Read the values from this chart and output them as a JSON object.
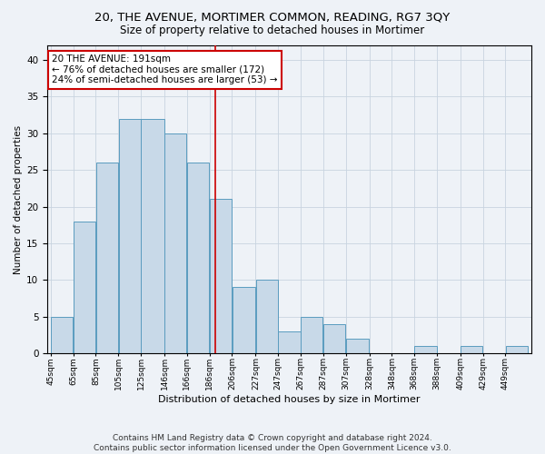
{
  "title": "20, THE AVENUE, MORTIMER COMMON, READING, RG7 3QY",
  "subtitle": "Size of property relative to detached houses in Mortimer",
  "xlabel": "Distribution of detached houses by size in Mortimer",
  "ylabel": "Number of detached properties",
  "categories": [
    "45sqm",
    "65sqm",
    "85sqm",
    "105sqm",
    "125sqm",
    "146sqm",
    "166sqm",
    "186sqm",
    "206sqm",
    "227sqm",
    "247sqm",
    "267sqm",
    "287sqm",
    "307sqm",
    "328sqm",
    "348sqm",
    "368sqm",
    "388sqm",
    "409sqm",
    "429sqm",
    "449sqm"
  ],
  "values": [
    5,
    18,
    26,
    32,
    32,
    30,
    26,
    21,
    9,
    10,
    3,
    5,
    4,
    2,
    0,
    0,
    1,
    0,
    1,
    0,
    1
  ],
  "bar_color": "#c8d9e8",
  "bar_edge_color": "#5a9cbf",
  "reference_line_x": 191,
  "bin_edges": [
    45,
    65,
    85,
    105,
    125,
    146,
    166,
    186,
    206,
    227,
    247,
    267,
    287,
    307,
    328,
    348,
    368,
    388,
    409,
    429,
    449,
    469
  ],
  "annotation_text": "20 THE AVENUE: 191sqm\n← 76% of detached houses are smaller (172)\n24% of semi-detached houses are larger (53) →",
  "annotation_box_color": "#ffffff",
  "annotation_box_edge_color": "#cc0000",
  "red_line_color": "#cc0000",
  "ylim": [
    0,
    42
  ],
  "yticks": [
    0,
    5,
    10,
    15,
    20,
    25,
    30,
    35,
    40
  ],
  "grid_color": "#c8d4e0",
  "background_color": "#eef2f7",
  "footer_line1": "Contains HM Land Registry data © Crown copyright and database right 2024.",
  "footer_line2": "Contains public sector information licensed under the Open Government Licence v3.0.",
  "title_fontsize": 9.5,
  "subtitle_fontsize": 8.5,
  "annotation_fontsize": 7.5,
  "ylabel_fontsize": 7.5,
  "xlabel_fontsize": 8,
  "footer_fontsize": 6.5,
  "ytick_fontsize": 7.5,
  "xtick_fontsize": 6.5
}
